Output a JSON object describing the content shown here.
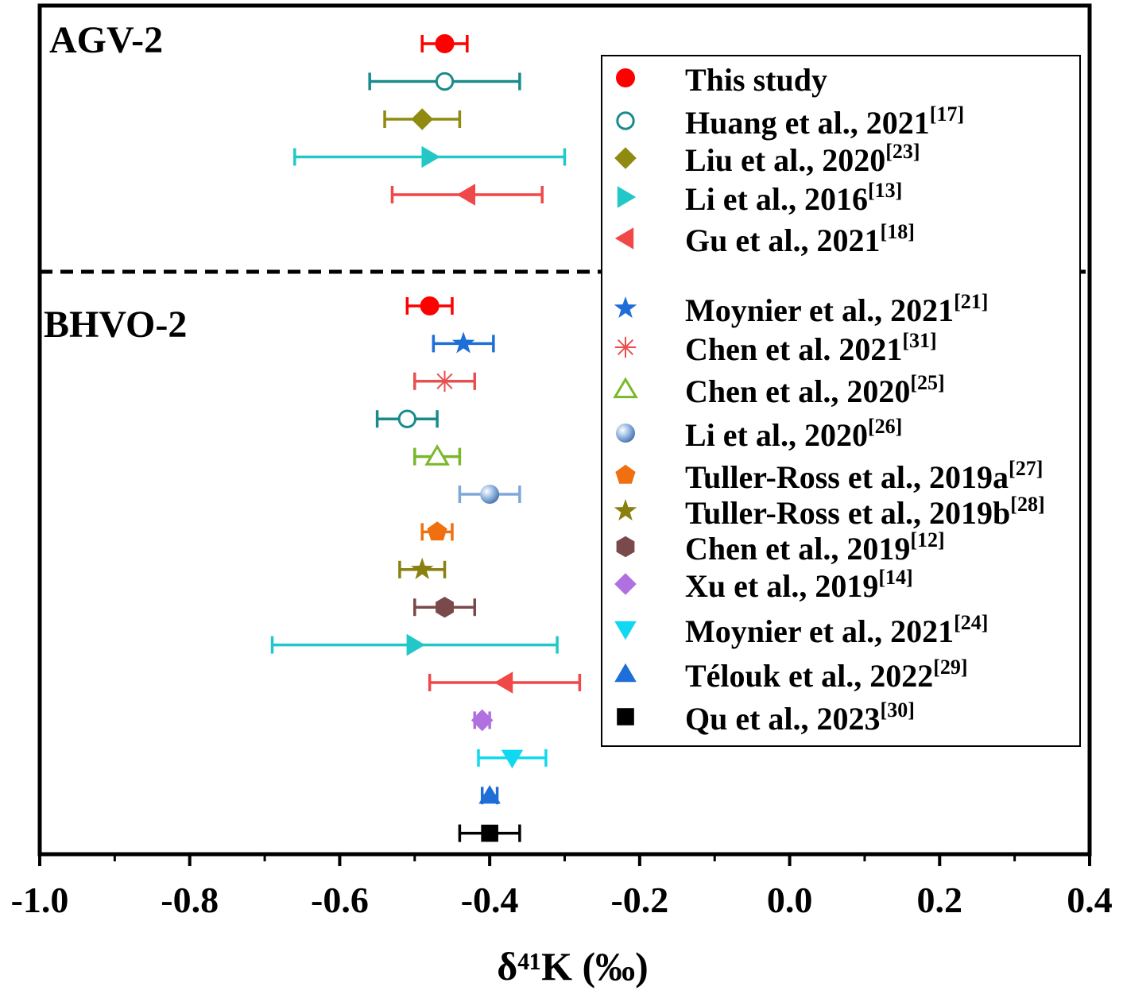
{
  "chart_data": {
    "type": "scatter",
    "xlabel": "δ⁴¹K (‰)",
    "xlim": [
      -1.0,
      0.4
    ],
    "xticks": [
      "-1.0",
      "-0.8",
      "-0.6",
      "-0.4",
      "-0.2",
      "0.0",
      "0.2",
      "0.4"
    ],
    "grid": false,
    "legend_position": "right",
    "panels": [
      {
        "label": "AGV-2",
        "points": [
          {
            "ref": "This study",
            "value": -0.46,
            "low": -0.49,
            "high": -0.43,
            "marker": "circle",
            "color": "#ff0000"
          },
          {
            "ref": "Huang et al., 2021",
            "value": -0.46,
            "low": -0.56,
            "high": -0.36,
            "marker": "circle-open",
            "color": "#1a8a8a"
          },
          {
            "ref": "Liu et al., 2020",
            "value": -0.49,
            "low": -0.54,
            "high": -0.44,
            "marker": "diamond",
            "color": "#8f8a10"
          },
          {
            "ref": "Li et al., 2016",
            "value": -0.48,
            "low": -0.66,
            "high": -0.3,
            "marker": "triangle-right",
            "color": "#22c8c8"
          },
          {
            "ref": "Gu et al., 2021",
            "value": -0.43,
            "low": -0.53,
            "high": -0.33,
            "marker": "triangle-left",
            "color": "#f04848"
          }
        ]
      },
      {
        "label": "BHVO-2",
        "points": [
          {
            "ref": "This study",
            "value": -0.48,
            "low": -0.51,
            "high": -0.45,
            "marker": "circle",
            "color": "#ff0000"
          },
          {
            "ref": "Moynier et al., 2021 [21]",
            "value": -0.435,
            "low": -0.475,
            "high": -0.395,
            "marker": "star",
            "color": "#1e6ed8"
          },
          {
            "ref": "Chen et al. 2021",
            "value": -0.46,
            "low": -0.5,
            "high": -0.42,
            "marker": "asterisk",
            "color": "#e85050"
          },
          {
            "ref": "Huang et al., 2021",
            "value": -0.51,
            "low": -0.55,
            "high": -0.47,
            "marker": "circle-open",
            "color": "#1a8a8a"
          },
          {
            "ref": "Chen et al., 2020",
            "value": -0.47,
            "low": -0.5,
            "high": -0.44,
            "marker": "triangle-open",
            "color": "#7ab82a"
          },
          {
            "ref": "Li et al., 2020",
            "value": -0.4,
            "low": -0.44,
            "high": -0.36,
            "marker": "sphere",
            "color": "#7fa7d8"
          },
          {
            "ref": "Tuller-Ross et al., 2019a",
            "value": -0.47,
            "low": -0.49,
            "high": -0.45,
            "marker": "pentagon",
            "color": "#f07010"
          },
          {
            "ref": "Tuller-Ross et al., 2019b",
            "value": -0.49,
            "low": -0.52,
            "high": -0.46,
            "marker": "star",
            "color": "#8a8010"
          },
          {
            "ref": "Chen et al., 2019",
            "value": -0.46,
            "low": -0.5,
            "high": -0.42,
            "marker": "hexagon",
            "color": "#7a4a4a"
          },
          {
            "ref": "Li et al., 2016",
            "value": -0.5,
            "low": -0.69,
            "high": -0.31,
            "marker": "triangle-right",
            "color": "#22c8c8"
          },
          {
            "ref": "Gu et al., 2021",
            "value": -0.38,
            "low": -0.48,
            "high": -0.28,
            "marker": "triangle-left",
            "color": "#f04848"
          },
          {
            "ref": "Xu et al., 2019",
            "value": -0.41,
            "low": -0.42,
            "high": -0.4,
            "marker": "diamond",
            "color": "#b070e0"
          },
          {
            "ref": "Moynier et al., 2021 [24]",
            "value": -0.37,
            "low": -0.415,
            "high": -0.325,
            "marker": "triangle-down",
            "color": "#10d8f0"
          },
          {
            "ref": "Télouk et al., 2022",
            "value": -0.4,
            "low": -0.41,
            "high": -0.39,
            "marker": "triangle-up",
            "color": "#1e6ed8"
          },
          {
            "ref": "Qu et al., 2023",
            "value": -0.4,
            "low": -0.44,
            "high": -0.36,
            "marker": "square",
            "color": "#000000"
          }
        ]
      }
    ],
    "legend": [
      {
        "name": "This study",
        "cite": "",
        "marker": "circle",
        "color": "#ff0000"
      },
      {
        "name": "Huang et al., 2021",
        "cite": "[17]",
        "marker": "circle-open",
        "color": "#1a8a8a"
      },
      {
        "name": "Liu et al., 2020",
        "cite": "[23]",
        "marker": "diamond",
        "color": "#8f8a10"
      },
      {
        "name": "Li et al., 2016",
        "cite": "[13]",
        "marker": "triangle-right",
        "color": "#22c8c8"
      },
      {
        "name": "Gu et al., 2021",
        "cite": "[18]",
        "marker": "triangle-left",
        "color": "#f04848"
      },
      {
        "name": "Moynier et al., 2021",
        "cite": "[21]",
        "marker": "star",
        "color": "#1e6ed8"
      },
      {
        "name": "Chen et al. 2021",
        "cite": "[31]",
        "marker": "asterisk",
        "color": "#e85050"
      },
      {
        "name": "Chen et al., 2020",
        "cite": "[25]",
        "marker": "triangle-open",
        "color": "#7ab82a"
      },
      {
        "name": "Li et al., 2020",
        "cite": "[26]",
        "marker": "sphere",
        "color": "#7fa7d8"
      },
      {
        "name": "Tuller-Ross et al., 2019a",
        "cite": "[27]",
        "marker": "pentagon",
        "color": "#f07010"
      },
      {
        "name": "Tuller-Ross et al., 2019b",
        "cite": "[28]",
        "marker": "star",
        "color": "#8a8010"
      },
      {
        "name": "Chen et al., 2019",
        "cite": "[12]",
        "marker": "hexagon",
        "color": "#7a4a4a"
      },
      {
        "name": "Xu et al., 2019",
        "cite": "[14]",
        "marker": "diamond",
        "color": "#b070e0"
      },
      {
        "name": "Moynier et al., 2021",
        "cite": "[24]",
        "marker": "triangle-down",
        "color": "#10d8f0"
      },
      {
        "name": "Télouk et al., 2022",
        "cite": "[29]",
        "marker": "triangle-up",
        "color": "#1e6ed8"
      },
      {
        "name": "Qu et al., 2023",
        "cite": "[30]",
        "marker": "square",
        "color": "#000000"
      }
    ]
  }
}
